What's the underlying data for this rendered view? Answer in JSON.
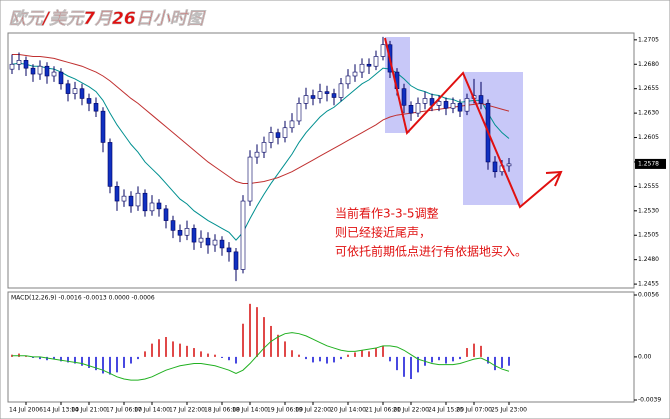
{
  "chart_data": [
    {
      "type": "candlestick",
      "title": "欧元/美元7月26日小时图",
      "annotations": [
        "当前看作3-3-5调整",
        "则已经接近尾声，",
        "可依托前期低点进行有依据地买入。"
      ],
      "categories": [
        null,
        null,
        "14 Jul 2006",
        null,
        null,
        null,
        null,
        "14 Jul 13:00",
        null,
        null,
        null,
        "14 Jul 21:00",
        null,
        null,
        null,
        null,
        "17 Jul 06:00",
        null,
        null,
        null,
        "17 Jul 14:00",
        null,
        null,
        null,
        null,
        "17 Jul 22:00",
        null,
        null,
        null,
        null,
        "18 Jul 06:00",
        null,
        null,
        null,
        "18 Jul 14:00",
        null,
        null,
        null,
        null,
        "19 Jul 06:00",
        null,
        null,
        null,
        "19 Jul 22:00",
        null,
        null,
        null,
        null,
        "20 Jul 14:00",
        null,
        null,
        null,
        null,
        "21 Jul 06:00",
        null,
        null,
        null,
        "21 Jul 22:00",
        null,
        null,
        null,
        null,
        "24 Jul 15:00",
        null,
        null,
        null,
        "25 Jul 07:00",
        null,
        null,
        null,
        null,
        "25 Jul 23:00"
      ],
      "open": [
        1.2675,
        1.268,
        1.2684,
        1.2676,
        1.267,
        1.2678,
        1.2668,
        1.2672,
        1.266,
        1.265,
        1.2655,
        1.2645,
        1.264,
        1.2632,
        1.26,
        1.2555,
        1.254,
        1.2545,
        1.2535,
        1.2548,
        1.253,
        1.2538,
        1.2532,
        1.252,
        1.251,
        1.2505,
        1.2512,
        1.2498,
        1.2502,
        1.2495,
        1.25,
        1.2492,
        1.2488,
        1.247,
        1.254,
        1.2585,
        1.259,
        1.26,
        1.261,
        1.2605,
        1.2615,
        1.2622,
        1.264,
        1.2648,
        1.2645,
        1.2652,
        1.265,
        1.2646,
        1.266,
        1.2668,
        1.2672,
        1.268,
        1.2678,
        1.2688,
        1.27,
        1.2672,
        1.2655,
        1.2638,
        1.263,
        1.264,
        1.2645,
        1.2638,
        1.2642,
        1.2635,
        1.264,
        1.2632,
        1.2645,
        1.2648,
        1.264,
        1.258,
        1.257,
        1.2576
      ],
      "high": [
        1.269,
        1.2692,
        1.2688,
        1.268,
        1.2684,
        1.2682,
        1.2678,
        1.2676,
        1.2664,
        1.2662,
        1.266,
        1.265,
        1.2646,
        1.2636,
        1.2604,
        1.256,
        1.2552,
        1.255,
        1.2555,
        1.2552,
        1.2546,
        1.2542,
        1.2536,
        1.2525,
        1.2516,
        1.252,
        1.2516,
        1.251,
        1.2508,
        1.2506,
        1.2504,
        1.2498,
        1.2492,
        1.2546,
        1.2592,
        1.2598,
        1.2606,
        1.2616,
        1.2614,
        1.2622,
        1.263,
        1.2646,
        1.2656,
        1.2654,
        1.266,
        1.2658,
        1.2655,
        1.2666,
        1.2675,
        1.268,
        1.2686,
        1.2686,
        1.2694,
        1.2708,
        1.2704,
        1.2676,
        1.266,
        1.2642,
        1.2646,
        1.2652,
        1.265,
        1.2648,
        1.2646,
        1.2646,
        1.2644,
        1.265,
        1.2665,
        1.2662,
        1.2644,
        1.2586,
        1.2582,
        1.2584
      ],
      "low": [
        1.267,
        1.2674,
        1.2668,
        1.2662,
        1.2664,
        1.266,
        1.2662,
        1.2654,
        1.2642,
        1.2644,
        1.2638,
        1.2632,
        1.2626,
        1.259,
        1.2548,
        1.253,
        1.2534,
        1.2528,
        1.253,
        1.2524,
        1.2525,
        1.2524,
        1.2512,
        1.2502,
        1.2498,
        1.25,
        1.249,
        1.2492,
        1.2486,
        1.2488,
        1.2484,
        1.2478,
        1.2458,
        1.2466,
        1.2535,
        1.2578,
        1.2584,
        1.2594,
        1.2598,
        1.26,
        1.261,
        1.2618,
        1.2634,
        1.2638,
        1.264,
        1.2642,
        1.2638,
        1.2642,
        1.2655,
        1.2662,
        1.2666,
        1.267,
        1.2674,
        1.2684,
        1.2666,
        1.2648,
        1.263,
        1.2622,
        1.2626,
        1.2634,
        1.2632,
        1.2632,
        1.2628,
        1.263,
        1.2626,
        1.2628,
        1.264,
        1.2634,
        1.2572,
        1.2564,
        1.2566,
        1.257
      ],
      "close": [
        1.268,
        1.2684,
        1.2676,
        1.267,
        1.2678,
        1.2668,
        1.2672,
        1.266,
        1.265,
        1.2655,
        1.2645,
        1.264,
        1.2632,
        1.26,
        1.2555,
        1.254,
        1.2545,
        1.2535,
        1.2548,
        1.253,
        1.2538,
        1.2532,
        1.252,
        1.251,
        1.2505,
        1.2512,
        1.2498,
        1.2502,
        1.2495,
        1.25,
        1.2492,
        1.2488,
        1.247,
        1.254,
        1.2585,
        1.259,
        1.26,
        1.261,
        1.2605,
        1.2615,
        1.2622,
        1.264,
        1.2648,
        1.2645,
        1.2652,
        1.265,
        1.2646,
        1.266,
        1.2668,
        1.2672,
        1.268,
        1.2678,
        1.2688,
        1.27,
        1.2672,
        1.2655,
        1.2638,
        1.263,
        1.264,
        1.2645,
        1.2638,
        1.2642,
        1.2635,
        1.264,
        1.2632,
        1.2645,
        1.2648,
        1.264,
        1.258,
        1.257,
        1.2576,
        1.2578
      ],
      "up_color": "#ffffff",
      "down_color": "#1030c0",
      "edge_color": "#000060",
      "lines": [
        {
          "color": "#009090",
          "values": [
            1.268,
            1.2681,
            1.268,
            1.2678,
            1.2678,
            1.2676,
            1.2675,
            1.2672,
            1.2668,
            1.2665,
            1.2661,
            1.2657,
            1.2652,
            1.2643,
            1.263,
            1.2618,
            1.2608,
            1.2598,
            1.259,
            1.258,
            1.2573,
            1.2566,
            1.2558,
            1.255,
            1.2542,
            1.2537,
            1.253,
            1.2525,
            1.252,
            1.2516,
            1.2512,
            1.2508,
            1.25,
            1.2508,
            1.2522,
            1.2535,
            1.2547,
            1.2558,
            1.2568,
            1.2578,
            1.2588,
            1.26,
            1.261,
            1.2618,
            1.2626,
            1.2632,
            1.2636,
            1.2642,
            1.2648,
            1.2654,
            1.266,
            1.2664,
            1.267,
            1.2676,
            1.2675,
            1.2671,
            1.2665,
            1.2658,
            1.2654,
            1.2652,
            1.2649,
            1.2648,
            1.2645,
            1.2644,
            1.2641,
            1.2642,
            1.2643,
            1.2643,
            1.263,
            1.2618,
            1.261,
            1.2604
          ]
        },
        {
          "color": "#c03030",
          "values": [
            1.269,
            1.269,
            1.2689,
            1.2688,
            1.2688,
            1.2687,
            1.2686,
            1.2684,
            1.2682,
            1.268,
            1.2678,
            1.2675,
            1.2672,
            1.2668,
            1.2663,
            1.2657,
            1.2651,
            1.2645,
            1.264,
            1.2634,
            1.2628,
            1.2622,
            1.2616,
            1.261,
            1.2604,
            1.2598,
            1.2592,
            1.2586,
            1.258,
            1.2575,
            1.257,
            1.2565,
            1.256,
            1.2558,
            1.2558,
            1.2559,
            1.256,
            1.2562,
            1.2564,
            1.2567,
            1.257,
            1.2574,
            1.2578,
            1.2582,
            1.2586,
            1.259,
            1.2594,
            1.2598,
            1.2602,
            1.2606,
            1.261,
            1.2614,
            1.2618,
            1.2623,
            1.2626,
            1.2628,
            1.2629,
            1.263,
            1.2631,
            1.2632,
            1.2633,
            1.2634,
            1.2635,
            1.2636,
            1.2637,
            1.2638,
            1.2639,
            1.264,
            1.2638,
            1.2636,
            1.2634,
            1.2632
          ]
        }
      ],
      "ylim": [
        1.2451,
        1.2712
      ],
      "yticks": [
        1.2705,
        {
          "value": 1.268,
          "label": "1.2680"
        },
        1.2655,
        {
          "value": 1.263,
          "label": "1.2630"
        },
        1.2605,
        {
          "value": 1.258,
          "label": "1.2580"
        },
        1.2555,
        {
          "value": 1.253,
          "label": "1.2530"
        },
        1.2505,
        {
          "value": 1.248,
          "label": "1.2480"
        },
        1.2455
      ]
    },
    {
      "type": "macd",
      "title": "MACD(12,26,9) -0.0016 -0.0013 0.0000 -0.0006",
      "values": [
        0.0002,
        0.0003,
        0.0001,
        -0.0001,
        -0.0002,
        -0.0003,
        -0.0002,
        -0.0004,
        -0.0005,
        -0.0006,
        -0.0008,
        -0.001,
        -0.0012,
        -0.0015,
        -0.0016,
        -0.0014,
        -0.001,
        -0.0006,
        -0.0002,
        0.0005,
        0.0012,
        0.0016,
        0.0018,
        0.0014,
        0.0012,
        0.001,
        0.0008,
        0.0005,
        0.0003,
        0.0002,
        -0.0001,
        -0.0003,
        -0.0006,
        0.003,
        0.0048,
        0.0045,
        0.0036,
        0.0028,
        0.002,
        0.0014,
        0.0006,
        0.0002,
        -0.0002,
        -0.0005,
        -0.0004,
        -0.0006,
        -0.0005,
        -0.0002,
        0.0002,
        0.0004,
        0.0006,
        0.0005,
        0.0008,
        0.001,
        -0.0004,
        -0.0012,
        -0.0018,
        -0.002,
        -0.0014,
        -0.0008,
        -0.0005,
        -0.0003,
        -0.0006,
        -0.0004,
        -0.0002,
        0.0008,
        0.0012,
        0.001,
        -0.0006,
        -0.0012,
        -0.001,
        -0.0008
      ],
      "up_color": "#e04848",
      "down_color": "#4848e0",
      "signal": {
        "color": "#20b020",
        "values": [
          0.0001,
          0.0001,
          0.0001,
          0.0,
          0.0,
          -0.0001,
          -0.0002,
          -0.0003,
          -0.0004,
          -0.0005,
          -0.0006,
          -0.0008,
          -0.001,
          -0.0012,
          -0.0015,
          -0.0018,
          -0.002,
          -0.0021,
          -0.0021,
          -0.002,
          -0.0018,
          -0.0015,
          -0.0012,
          -0.001,
          -0.0008,
          -0.0007,
          -0.0006,
          -0.0006,
          -0.0007,
          -0.0008,
          -0.001,
          -0.0012,
          -0.0015,
          -0.0012,
          -0.0006,
          0.0001,
          0.0008,
          0.0014,
          0.0018,
          0.0021,
          0.0022,
          0.0021,
          0.0019,
          0.0016,
          0.0013,
          0.001,
          0.0008,
          0.0006,
          0.0005,
          0.0005,
          0.0006,
          0.0007,
          0.0008,
          0.001,
          0.001,
          0.0009,
          0.0006,
          0.0002,
          -0.0002,
          -0.0004,
          -0.0006,
          -0.0007,
          -0.0007,
          -0.0007,
          -0.0006,
          -0.0004,
          -0.0002,
          -0.0001,
          -0.0004,
          -0.0008,
          -0.0011,
          -0.0013
        ]
      },
      "ylim": [
        -0.0039,
        0.0056
      ],
      "yticks": [
        0.0056,
        {
          "value": 0,
          "label": "0.00"
        },
        -0.0039
      ]
    }
  ]
}
